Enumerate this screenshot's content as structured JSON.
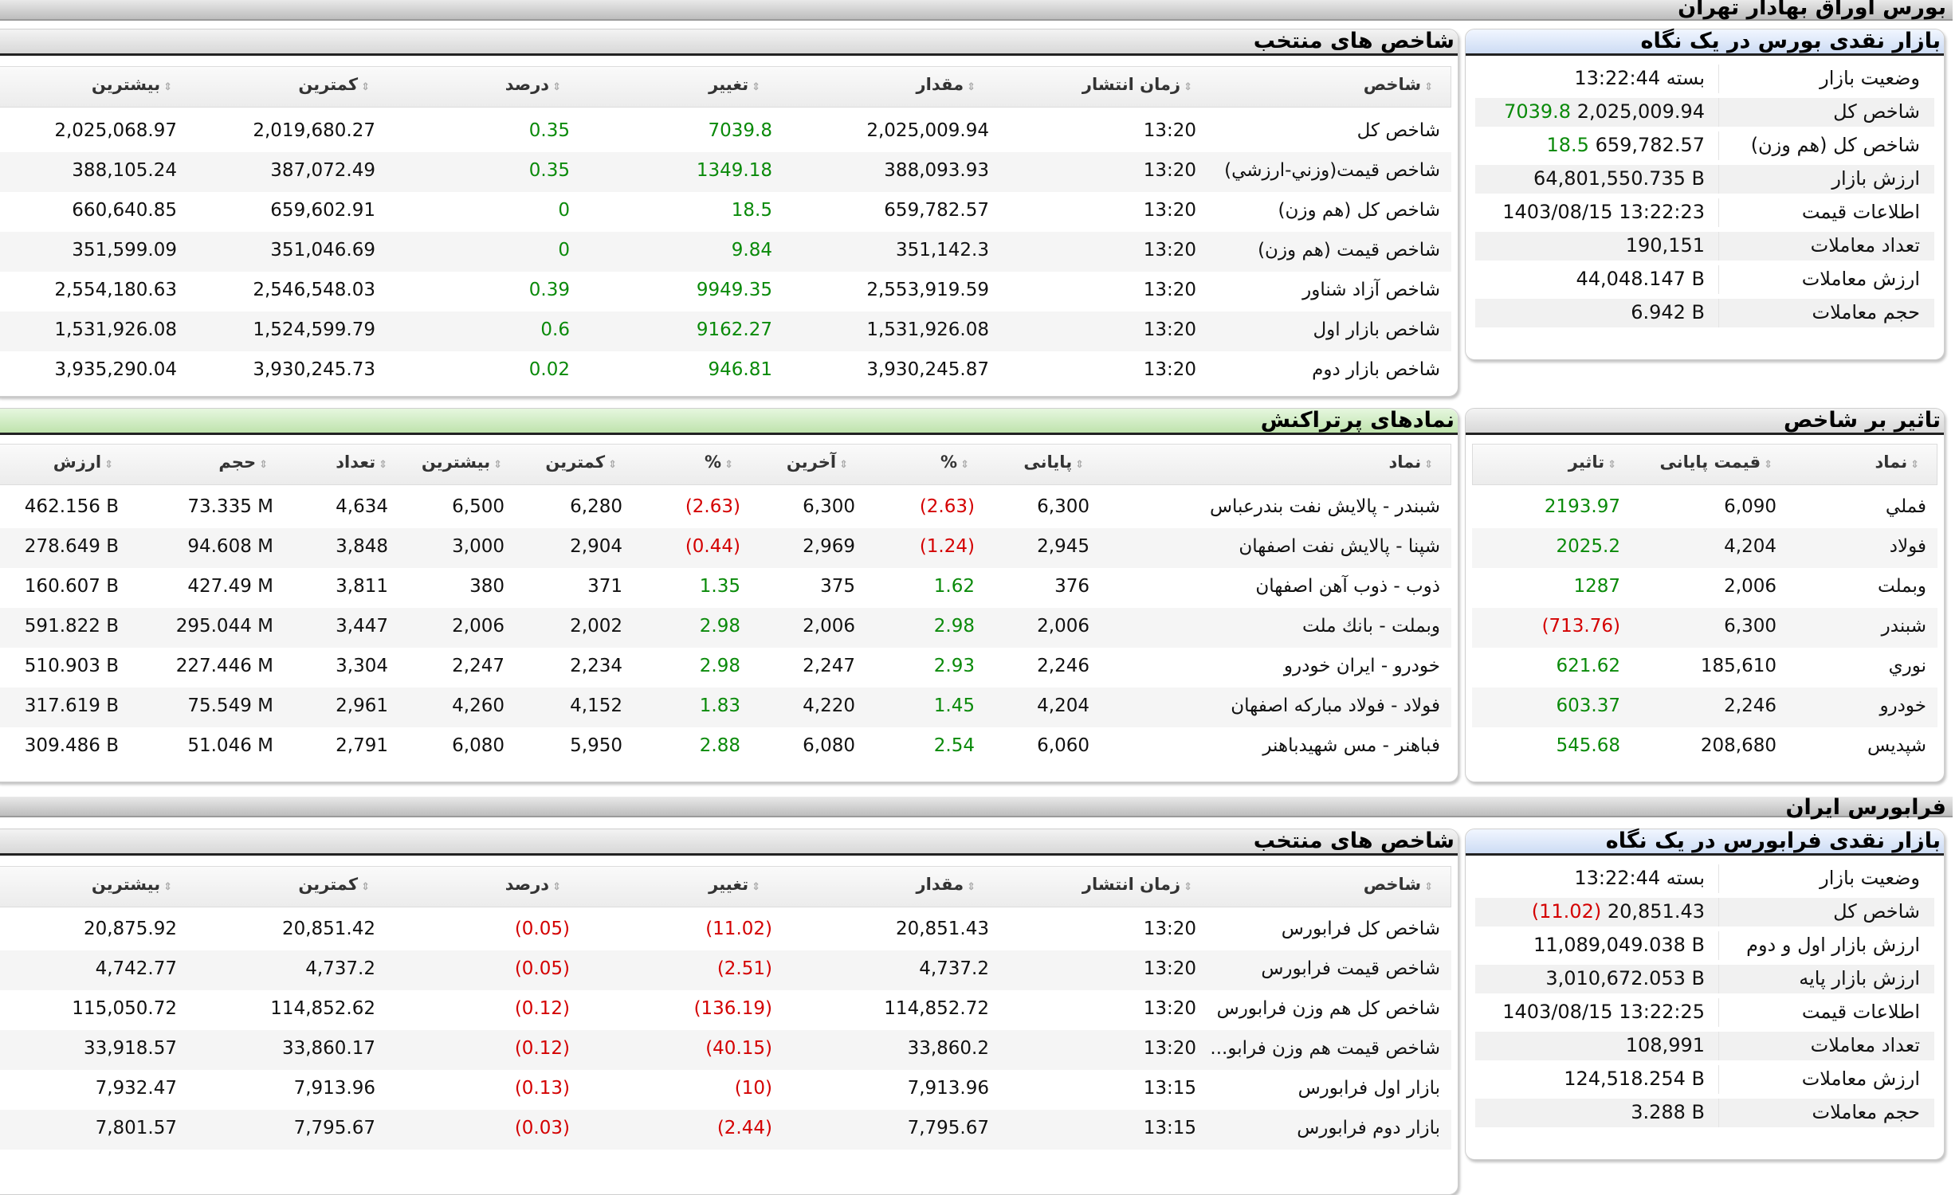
{
  "tse": {
    "bar_title": "بورس اوراق بهادار تهران",
    "glance": {
      "title": "بازار نقدی بورس در یک نگاه",
      "rows": [
        {
          "label": "وضعیت بازار",
          "value": "13:22:44 بسته",
          "change": ""
        },
        {
          "label": "شاخص کل",
          "value": "2,025,009.94",
          "change": "7039.8"
        },
        {
          "label": "شاخص کل (هم وزن)",
          "value": "659,782.57",
          "change": "18.5"
        },
        {
          "label": "ارزش بازار",
          "value": "64,801,550.735 B",
          "change": ""
        },
        {
          "label": "اطلاعات قیمت",
          "value": "1403/08/15 13:22:23",
          "change": ""
        },
        {
          "label": "تعداد معاملات",
          "value": "190,151",
          "change": ""
        },
        {
          "label": "ارزش معاملات",
          "value": "44,048.147 B",
          "change": ""
        },
        {
          "label": "حجم معاملات",
          "value": "6.942 B",
          "change": ""
        }
      ]
    },
    "indices": {
      "title": "شاخص های منتخب",
      "headers": [
        "شاخص",
        "زمان انتشار",
        "مقدار",
        "تغییر",
        "درصد",
        "کمترین",
        "بیشترین"
      ],
      "rows": [
        {
          "name": "شاخص کل",
          "time": "13:20",
          "value": "2,025,009.94",
          "change": "7039.8",
          "percent": "0.35",
          "min": "2,019,680.27",
          "max": "2,025,068.97",
          "dir": "pos"
        },
        {
          "name": "شاخص قیمت(وزني-ارزشي)",
          "time": "13:20",
          "value": "388,093.93",
          "change": "1349.18",
          "percent": "0.35",
          "min": "387,072.49",
          "max": "388,105.24",
          "dir": "pos"
        },
        {
          "name": "شاخص کل (هم وزن)",
          "time": "13:20",
          "value": "659,782.57",
          "change": "18.5",
          "percent": "0",
          "min": "659,602.91",
          "max": "660,640.85",
          "dir": "pos"
        },
        {
          "name": "شاخص قیمت (هم وزن)",
          "time": "13:20",
          "value": "351,142.3",
          "change": "9.84",
          "percent": "0",
          "min": "351,046.69",
          "max": "351,599.09",
          "dir": "pos"
        },
        {
          "name": "شاخص آزاد شناور",
          "time": "13:20",
          "value": "2,553,919.59",
          "change": "9949.35",
          "percent": "0.39",
          "min": "2,546,548.03",
          "max": "2,554,180.63",
          "dir": "pos"
        },
        {
          "name": "شاخص بازار اول",
          "time": "13:20",
          "value": "1,531,926.08",
          "change": "9162.27",
          "percent": "0.6",
          "min": "1,524,599.79",
          "max": "1,531,926.08",
          "dir": "pos"
        },
        {
          "name": "شاخص بازار دوم",
          "time": "13:20",
          "value": "3,930,245.87",
          "change": "946.81",
          "percent": "0.02",
          "min": "3,930,245.73",
          "max": "3,935,290.04",
          "dir": "pos"
        }
      ]
    },
    "impact": {
      "title": "تاثیر بر شاخص",
      "headers": [
        "نماد",
        "قیمت پایانی",
        "تاثیر"
      ],
      "rows": [
        {
          "symbol": "فملي",
          "price": "6,090",
          "impact": "2193.97",
          "dir": "pos"
        },
        {
          "symbol": "فولاد",
          "price": "4,204",
          "impact": "2025.2",
          "dir": "pos"
        },
        {
          "symbol": "وبملت",
          "price": "2,006",
          "impact": "1287",
          "dir": "pos"
        },
        {
          "symbol": "شبندر",
          "price": "6,300",
          "impact": "(713.76)",
          "dir": "neg"
        },
        {
          "symbol": "نوري",
          "price": "185,610",
          "impact": "621.62",
          "dir": "pos"
        },
        {
          "symbol": "خودرو",
          "price": "2,246",
          "impact": "603.37",
          "dir": "pos"
        },
        {
          "symbol": "شپديس",
          "price": "208,680",
          "impact": "545.68",
          "dir": "pos"
        }
      ]
    },
    "active": {
      "title": "نمادهای پرتراکنش",
      "headers": [
        "نماد",
        "پایانی",
        "%",
        "آخرین",
        "%",
        "کمترین",
        "بیشترین",
        "تعداد",
        "حجم",
        "ارزش"
      ],
      "rows": [
        {
          "name": "شبندر - پالايش نفت بندرعباس",
          "close": "6,300",
          "close_pct": "(2.63)",
          "close_dir": "neg",
          "last": "6,300",
          "last_pct": "(2.63)",
          "last_dir": "neg",
          "min": "6,280",
          "max": "6,500",
          "count": "4,634",
          "volume": "73.335 M",
          "value": "462.156 B"
        },
        {
          "name": "شپنا - پالايش نفت اصفهان",
          "close": "2,945",
          "close_pct": "(1.24)",
          "close_dir": "neg",
          "last": "2,969",
          "last_pct": "(0.44)",
          "last_dir": "neg",
          "min": "2,904",
          "max": "3,000",
          "count": "3,848",
          "volume": "94.608 M",
          "value": "278.649 B"
        },
        {
          "name": "ذوب - ذوب آهن اصفهان",
          "close": "376",
          "close_pct": "1.62",
          "close_dir": "pos",
          "last": "375",
          "last_pct": "1.35",
          "last_dir": "pos",
          "min": "371",
          "max": "380",
          "count": "3,811",
          "volume": "427.49 M",
          "value": "160.607 B"
        },
        {
          "name": "وبملت - بانك ملت",
          "close": "2,006",
          "close_pct": "2.98",
          "close_dir": "pos",
          "last": "2,006",
          "last_pct": "2.98",
          "last_dir": "pos",
          "min": "2,002",
          "max": "2,006",
          "count": "3,447",
          "volume": "295.044 M",
          "value": "591.822 B"
        },
        {
          "name": "خودرو - ايران خودرو",
          "close": "2,246",
          "close_pct": "2.93",
          "close_dir": "pos",
          "last": "2,247",
          "last_pct": "2.98",
          "last_dir": "pos",
          "min": "2,234",
          "max": "2,247",
          "count": "3,304",
          "volume": "227.446 M",
          "value": "510.903 B"
        },
        {
          "name": "فولاد - فولاد مباركه اصفهان",
          "close": "4,204",
          "close_pct": "1.45",
          "close_dir": "pos",
          "last": "4,220",
          "last_pct": "1.83",
          "last_dir": "pos",
          "min": "4,152",
          "max": "4,260",
          "count": "2,961",
          "volume": "75.549 M",
          "value": "317.619 B"
        },
        {
          "name": "فباهنر - مس شهيدباهنر",
          "close": "6,060",
          "close_pct": "2.54",
          "close_dir": "pos",
          "last": "6,080",
          "last_pct": "2.88",
          "last_dir": "pos",
          "min": "5,950",
          "max": "6,080",
          "count": "2,791",
          "volume": "51.046 M",
          "value": "309.486 B"
        }
      ]
    }
  },
  "ifb": {
    "bar_title": "فرابورس ایران",
    "glance": {
      "title": "بازار نقدی فرابورس در یک نگاه",
      "rows": [
        {
          "label": "وضعیت بازار",
          "value": "13:22:44 بسته",
          "change": ""
        },
        {
          "label": "شاخص کل",
          "value": "20,851.43",
          "change": "(11.02)"
        },
        {
          "label": "ارزش بازار اول و دوم",
          "value": "11,089,049.038 B",
          "change": ""
        },
        {
          "label": "ارزش بازار پایه",
          "value": "3,010,672.053 B",
          "change": ""
        },
        {
          "label": "اطلاعات قیمت",
          "value": "1403/08/15 13:22:25",
          "change": ""
        },
        {
          "label": "تعداد معاملات",
          "value": "108,991",
          "change": ""
        },
        {
          "label": "ارزش معاملات",
          "value": "124,518.254 B",
          "change": ""
        },
        {
          "label": "حجم معاملات",
          "value": "3.288 B",
          "change": ""
        }
      ]
    },
    "indices": {
      "title": "شاخص های منتخب",
      "headers": [
        "شاخص",
        "زمان انتشار",
        "مقدار",
        "تغییر",
        "درصد",
        "کمترین",
        "بیشترین"
      ],
      "rows": [
        {
          "name": "شاخص کل فرابورس",
          "time": "13:20",
          "value": "20,851.43",
          "change": "(11.02)",
          "percent": "(0.05)",
          "min": "20,851.42",
          "max": "20,875.92",
          "dir": "neg"
        },
        {
          "name": "شاخص قیمت فرابورس",
          "time": "13:20",
          "value": "4,737.2",
          "change": "(2.51)",
          "percent": "(0.05)",
          "min": "4,737.2",
          "max": "4,742.77",
          "dir": "neg"
        },
        {
          "name": "شاخص کل هم وزن فرابورس",
          "time": "13:20",
          "value": "114,852.72",
          "change": "(136.19)",
          "percent": "(0.12)",
          "min": "114,852.62",
          "max": "115,050.72",
          "dir": "neg"
        },
        {
          "name": "شاخص قیمت هم وزن فرابو...",
          "time": "13:20",
          "value": "33,860.2",
          "change": "(40.15)",
          "percent": "(0.12)",
          "min": "33,860.17",
          "max": "33,918.57",
          "dir": "neg"
        },
        {
          "name": "بازار اول فرابورس",
          "time": "13:15",
          "value": "7,913.96",
          "change": "(10)",
          "percent": "(0.13)",
          "min": "7,913.96",
          "max": "7,932.47",
          "dir": "neg"
        },
        {
          "name": "بازار دوم فرابورس",
          "time": "13:15",
          "value": "7,795.67",
          "change": "(2.44)",
          "percent": "(0.03)",
          "min": "7,795.67",
          "max": "7,801.57",
          "dir": "neg"
        }
      ]
    }
  },
  "colors": {
    "positive": "#0a8a0a",
    "negative": "#d40000"
  }
}
